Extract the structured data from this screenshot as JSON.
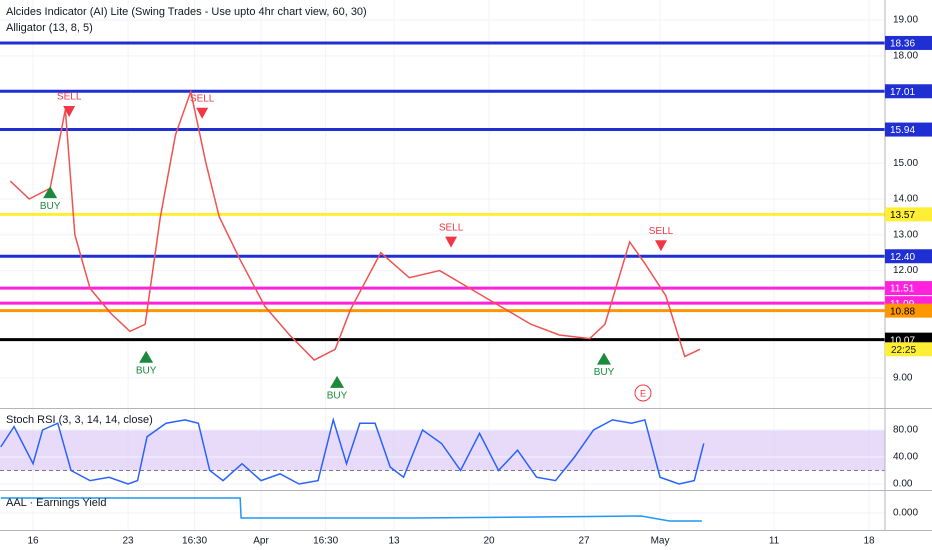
{
  "chart_data": [
    {
      "type": "line",
      "title": "Alcides Indicator (AI) Lite (Swing Trades - Use upto 4hr chart view, 60, 30)",
      "subtitle": "Alligator (13, 8, 5)",
      "xlim": [
        -1.74,
        44.84
      ],
      "ylim": [
        8.16,
        19.56
      ],
      "xticks": [
        {
          "value": 0,
          "label": "16"
        },
        {
          "value": 5,
          "label": "23"
        },
        {
          "value": 8.5,
          "label": "16:30"
        },
        {
          "value": 12,
          "label": "Apr"
        },
        {
          "value": 15.4,
          "label": "16:30"
        },
        {
          "value": 19,
          "label": "13"
        },
        {
          "value": 24,
          "label": "20"
        },
        {
          "value": 29,
          "label": "27"
        },
        {
          "value": 33,
          "label": "May"
        },
        {
          "value": 39,
          "label": "11"
        },
        {
          "value": 44,
          "label": "18"
        }
      ],
      "yticks": [
        {
          "value": 19,
          "label": "19.00"
        },
        {
          "value": 18,
          "label": "18.00"
        },
        {
          "value": 15,
          "label": "15.00"
        },
        {
          "value": 14,
          "label": "14.00"
        },
        {
          "value": 13,
          "label": "13.00"
        },
        {
          "value": 12,
          "label": "12.00"
        },
        {
          "value": 9,
          "label": "9.00"
        }
      ],
      "grid": true,
      "series": [
        {
          "color": "#ef5350",
          "x": [
            -1.2,
            -0.2,
            0.9,
            1.7,
            2.2,
            3.0,
            4.1,
            5.1,
            5.9,
            6.7,
            7.5,
            8.3,
            9.1,
            9.8,
            10.9,
            12.2,
            13.5,
            14.8,
            15.9,
            16.7,
            18.3,
            19.8,
            21.4,
            23.0,
            24.6,
            26.2,
            27.7,
            29.3,
            30.1,
            31.4,
            32.2,
            33.3,
            34.3,
            35.1
          ],
          "values": [
            14.5,
            14.0,
            14.3,
            16.5,
            13.0,
            11.5,
            10.8,
            10.3,
            10.5,
            13.5,
            15.8,
            17.0,
            15.0,
            13.5,
            12.3,
            11.0,
            10.2,
            9.5,
            9.8,
            10.9,
            12.5,
            11.8,
            12.0,
            11.5,
            11.0,
            10.5,
            10.2,
            10.1,
            10.5,
            12.8,
            12.2,
            11.3,
            9.6,
            9.8
          ]
        }
      ],
      "levels": [
        {
          "value": 18.36,
          "color": "#1f2fd1"
        },
        {
          "value": 17.01,
          "color": "#1f2fd1"
        },
        {
          "value": 15.94,
          "color": "#1f2fd1"
        },
        {
          "value": 13.57,
          "color": "#ffee33"
        },
        {
          "value": 12.4,
          "label": "12.40",
          "color": "#1f2fd1"
        },
        {
          "value": 11.51,
          "color": "#ff22dd"
        },
        {
          "value": 11.09,
          "color": "#ff22dd"
        },
        {
          "value": 10.88,
          "color": "#ff9800"
        },
        {
          "value": 10.07,
          "color": "#000000"
        }
      ],
      "countdown": "22:25",
      "earnings_marker": "E",
      "annotations": [
        {
          "text": "SELL",
          "x": 1.9,
          "y": 16.85
        },
        {
          "text": "BUY",
          "x": 0.9,
          "y": 13.8
        },
        {
          "text": "SELL",
          "x": 8.9,
          "y": 16.8
        },
        {
          "text": "BUY",
          "x": 5.95,
          "y": 9.2
        },
        {
          "text": "BUY",
          "x": 16.0,
          "y": 8.5
        },
        {
          "text": "SELL",
          "x": 22.0,
          "y": 13.2
        },
        {
          "text": "BUY",
          "x": 30.05,
          "y": 9.15
        },
        {
          "text": "SELL",
          "x": 33.05,
          "y": 13.1
        }
      ]
    },
    {
      "type": "line",
      "title": "Stoch RSI (3, 3, 14, 14, close)",
      "ylim": [
        -8.9,
        109.6
      ],
      "yticks": [
        {
          "value": 80,
          "label": "80.00"
        },
        {
          "value": 40,
          "label": "40.00"
        },
        {
          "value": 0,
          "label": "0.00"
        }
      ],
      "band": [
        20,
        80
      ],
      "band_color": "#d9c3f5",
      "series": [
        {
          "color": "#2962ff",
          "x": [
            -1.7,
            -1,
            0,
            0.5,
            1.3,
            2,
            3,
            4,
            5,
            5.5,
            6,
            7,
            8,
            8.7,
            9.3,
            10,
            11,
            12,
            13,
            14,
            15,
            15.8,
            16.5,
            17.2,
            18,
            18.8,
            19.5,
            20.5,
            21.5,
            22.5,
            23.5,
            24.5,
            25.5,
            26.5,
            27.5,
            28.5,
            29.5,
            30.5,
            31.5,
            32.2,
            33,
            34,
            34.8,
            35.3
          ],
          "values": [
            55,
            85,
            30,
            80,
            90,
            20,
            5,
            10,
            0,
            5,
            70,
            90,
            95,
            90,
            20,
            5,
            30,
            5,
            15,
            0,
            5,
            95,
            30,
            90,
            90,
            25,
            10,
            80,
            60,
            20,
            75,
            20,
            50,
            10,
            5,
            40,
            80,
            95,
            90,
            95,
            10,
            0,
            5,
            60
          ]
        }
      ]
    },
    {
      "type": "line",
      "title": "AAL · Earnings Yield",
      "ylim": [
        -0.0085,
        0.0105
      ],
      "yticks": [
        {
          "value": 0,
          "label": "0.000"
        }
      ],
      "series": [
        {
          "color": "#2196f3",
          "x": [
            -1.7,
            10.9,
            10.95,
            20,
            30,
            32,
            33.5,
            35.2
          ],
          "values": [
            0.0075,
            0.0075,
            -0.0025,
            -0.0025,
            -0.0017,
            -0.0015,
            -0.004,
            -0.004
          ]
        }
      ]
    }
  ]
}
